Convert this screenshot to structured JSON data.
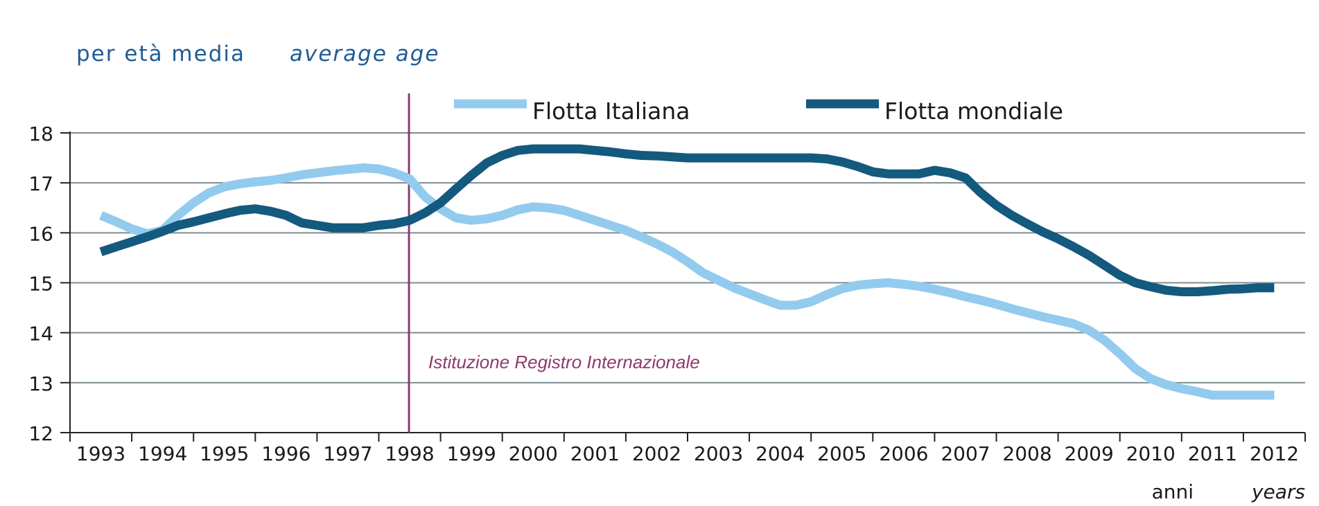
{
  "chart_data": {
    "type": "line",
    "ylabel": "per età media",
    "ylabel_en": "average age",
    "xlabel": "anni",
    "xlabel_en": "years",
    "ylim": [
      12,
      18
    ],
    "yticks": [
      "12",
      "13",
      "14",
      "15",
      "16",
      "17",
      "18"
    ],
    "categories": [
      "1993",
      "1994",
      "1995",
      "1996",
      "1997",
      "1998",
      "1999",
      "2000",
      "2001",
      "2002",
      "2003",
      "2004",
      "2005",
      "2006",
      "2007",
      "2008",
      "2009",
      "2010",
      "2011",
      "2012"
    ],
    "grid": true,
    "legend_position": "top",
    "annotation": {
      "text": "Istituzione Registro Internazionale",
      "x": "1998",
      "color": "#8e3a6b"
    },
    "series": [
      {
        "name": "Flotta Italiana",
        "color": "#93cbee",
        "x": [
          1993.0,
          1993.25,
          1993.5,
          1993.75,
          1994.0,
          1994.25,
          1994.5,
          1994.75,
          1995.0,
          1995.25,
          1995.5,
          1995.75,
          1996.0,
          1996.25,
          1996.5,
          1996.75,
          1997.0,
          1997.25,
          1997.5,
          1997.75,
          1998.0,
          1998.25,
          1998.5,
          1998.75,
          1999.0,
          1999.25,
          1999.5,
          1999.75,
          2000.0,
          2000.25,
          2000.5,
          2000.75,
          2001.0,
          2001.25,
          2001.5,
          2001.75,
          2002.0,
          2002.25,
          2002.5,
          2002.75,
          2003.0,
          2003.25,
          2003.5,
          2003.75,
          2004.0,
          2004.25,
          2004.5,
          2004.75,
          2005.0,
          2005.25,
          2005.5,
          2005.75,
          2006.0,
          2006.25,
          2006.5,
          2006.75,
          2007.0,
          2007.25,
          2007.5,
          2007.75,
          2008.0,
          2008.25,
          2008.5,
          2008.75,
          2009.0,
          2009.25,
          2009.5,
          2009.75,
          2010.0,
          2010.25,
          2010.5,
          2010.75,
          2011.0,
          2011.25,
          2011.5,
          2011.75,
          2012.0
        ],
        "values": [
          16.35,
          16.22,
          16.08,
          15.98,
          16.05,
          16.35,
          16.6,
          16.8,
          16.92,
          16.98,
          17.02,
          17.05,
          17.1,
          17.16,
          17.2,
          17.24,
          17.27,
          17.3,
          17.28,
          17.2,
          17.08,
          16.72,
          16.48,
          16.3,
          16.25,
          16.28,
          16.35,
          16.46,
          16.52,
          16.5,
          16.45,
          16.35,
          16.25,
          16.15,
          16.05,
          15.92,
          15.78,
          15.62,
          15.42,
          15.2,
          15.05,
          14.9,
          14.78,
          14.66,
          14.55,
          14.55,
          14.62,
          14.76,
          14.88,
          14.95,
          14.98,
          15.0,
          14.97,
          14.93,
          14.87,
          14.8,
          14.72,
          14.65,
          14.57,
          14.48,
          14.4,
          14.32,
          14.25,
          14.18,
          14.05,
          13.85,
          13.58,
          13.28,
          13.08,
          12.96,
          12.88,
          12.82,
          12.75,
          12.75,
          12.75,
          12.75,
          12.75
        ]
      },
      {
        "name": "Flotta mondiale",
        "color": "#14597e",
        "x": [
          1993.0,
          1993.25,
          1993.5,
          1993.75,
          1994.0,
          1994.25,
          1994.5,
          1994.75,
          1995.0,
          1995.25,
          1995.5,
          1995.75,
          1996.0,
          1996.25,
          1996.5,
          1996.75,
          1997.0,
          1997.25,
          1997.5,
          1997.75,
          1998.0,
          1998.25,
          1998.5,
          1998.75,
          1999.0,
          1999.25,
          1999.5,
          1999.75,
          2000.0,
          2000.25,
          2000.5,
          2000.75,
          2001.0,
          2001.25,
          2001.5,
          2001.75,
          2002.0,
          2002.25,
          2002.5,
          2002.75,
          2003.0,
          2003.25,
          2003.5,
          2003.75,
          2004.0,
          2004.25,
          2004.5,
          2004.75,
          2005.0,
          2005.25,
          2005.5,
          2005.75,
          2006.0,
          2006.25,
          2006.5,
          2006.75,
          2007.0,
          2007.25,
          2007.5,
          2007.75,
          2008.0,
          2008.25,
          2008.5,
          2008.75,
          2009.0,
          2009.25,
          2009.5,
          2009.75,
          2010.0,
          2010.25,
          2010.5,
          2010.75,
          2011.0,
          2011.25,
          2011.5,
          2011.75,
          2012.0
        ],
        "values": [
          15.62,
          15.72,
          15.82,
          15.92,
          16.03,
          16.15,
          16.22,
          16.3,
          16.38,
          16.45,
          16.48,
          16.43,
          16.35,
          16.2,
          16.15,
          16.1,
          16.1,
          16.1,
          16.15,
          16.18,
          16.25,
          16.4,
          16.6,
          16.88,
          17.15,
          17.4,
          17.55,
          17.65,
          17.68,
          17.68,
          17.68,
          17.68,
          17.65,
          17.62,
          17.58,
          17.55,
          17.54,
          17.52,
          17.5,
          17.5,
          17.5,
          17.5,
          17.5,
          17.5,
          17.5,
          17.5,
          17.5,
          17.48,
          17.42,
          17.33,
          17.22,
          17.18,
          17.18,
          17.18,
          17.25,
          17.2,
          17.1,
          16.8,
          16.55,
          16.35,
          16.18,
          16.02,
          15.88,
          15.72,
          15.55,
          15.35,
          15.15,
          15.0,
          14.92,
          14.85,
          14.82,
          14.82,
          14.84,
          14.87,
          14.88,
          14.9,
          14.9
        ]
      }
    ]
  }
}
